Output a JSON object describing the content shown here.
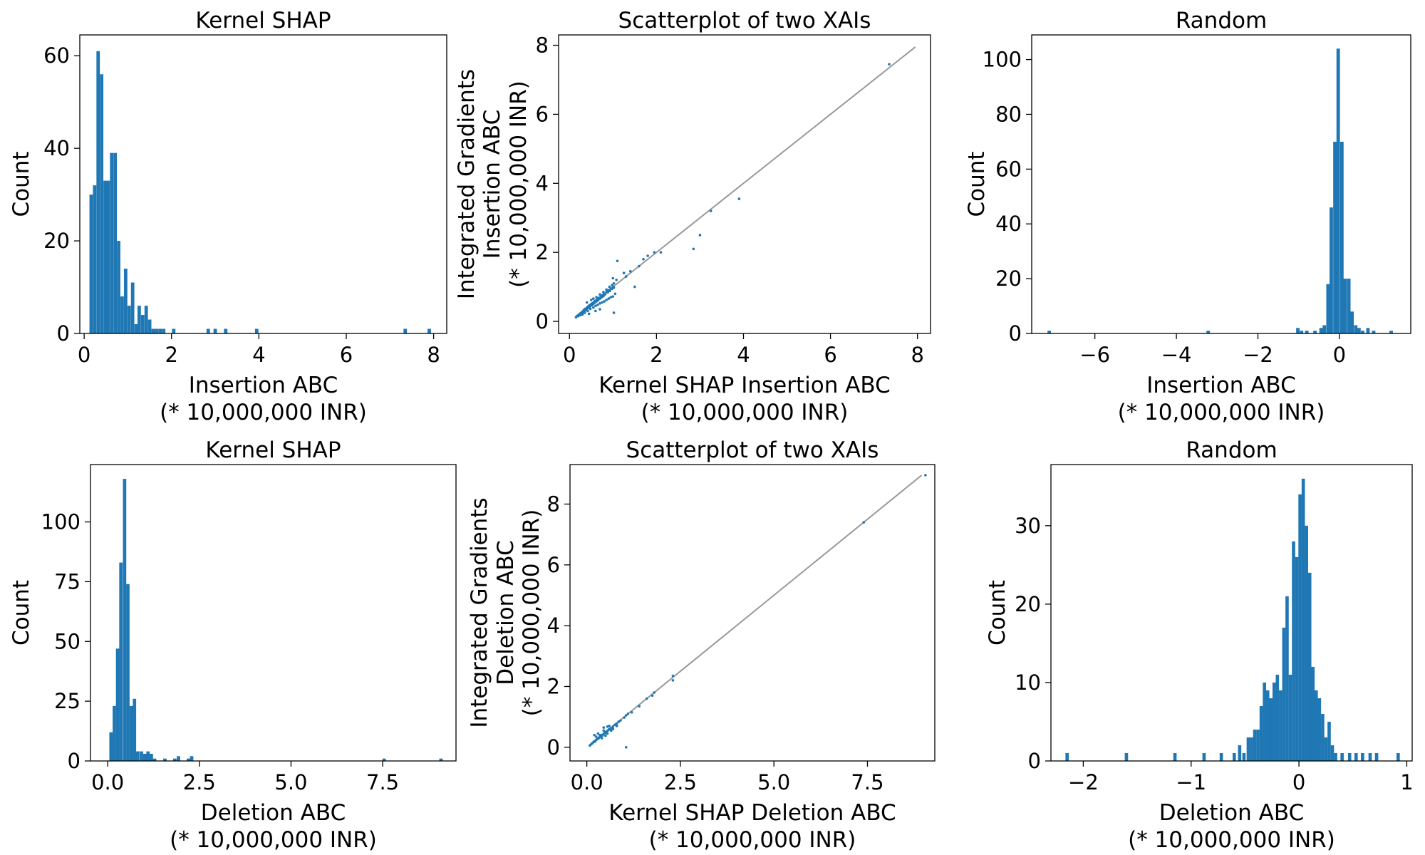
{
  "chart_data": [
    {
      "type": "bar",
      "title": "Kernel SHAP",
      "xlabel": [
        "Insertion ABC",
        "(* 10,000,000 INR)"
      ],
      "ylabel": [
        "Count"
      ],
      "xlim": [
        -0.1,
        8.3
      ],
      "ylim": [
        0,
        64.5
      ],
      "xticks": [
        0,
        2,
        4,
        6,
        8
      ],
      "xtick_labels": [
        "0",
        "2",
        "4",
        "6",
        "8"
      ],
      "yticks": [
        0,
        20,
        40,
        60
      ],
      "ytick_labels": [
        "0",
        "20",
        "40",
        "60"
      ],
      "bin_width": 0.078,
      "bins": [
        [
          0.16,
          30
        ],
        [
          0.24,
          32
        ],
        [
          0.32,
          61
        ],
        [
          0.4,
          56
        ],
        [
          0.48,
          33
        ],
        [
          0.55,
          33
        ],
        [
          0.63,
          39
        ],
        [
          0.71,
          39
        ],
        [
          0.79,
          20
        ],
        [
          0.87,
          8
        ],
        [
          0.95,
          14
        ],
        [
          1.03,
          6
        ],
        [
          1.11,
          11
        ],
        [
          1.19,
          2
        ],
        [
          1.26,
          6
        ],
        [
          1.34,
          4
        ],
        [
          1.42,
          6
        ],
        [
          1.5,
          3
        ],
        [
          1.58,
          1
        ],
        [
          1.66,
          1
        ],
        [
          1.74,
          1
        ],
        [
          1.82,
          1
        ],
        [
          2.05,
          1
        ],
        [
          2.84,
          1
        ],
        [
          3.0,
          1
        ],
        [
          3.24,
          1
        ],
        [
          3.95,
          1
        ],
        [
          7.35,
          1
        ],
        [
          7.9,
          1
        ]
      ]
    },
    {
      "type": "scatter",
      "title": "Scatterplot of two XAIs",
      "xlabel": [
        "Kernel SHAP Insertion ABC",
        "(* 10,000,000 INR)"
      ],
      "ylabel": [
        "Integrated Gradients",
        "Insertion ABC",
        "(* 10,000,000 INR)"
      ],
      "xlim": [
        -0.25,
        8.3
      ],
      "ylim": [
        -0.35,
        8.3
      ],
      "xticks": [
        0,
        2,
        4,
        6,
        8
      ],
      "xtick_labels": [
        "0",
        "2",
        "4",
        "6",
        "8"
      ],
      "yticks": [
        0,
        2,
        4,
        6,
        8
      ],
      "ytick_labels": [
        "0",
        "2",
        "4",
        "6",
        "8"
      ],
      "reference_line": [
        [
          0.15,
          0.15
        ],
        [
          7.95,
          7.95
        ]
      ],
      "points": [
        [
          0.15,
          0.12
        ],
        [
          0.18,
          0.16
        ],
        [
          0.2,
          0.15
        ],
        [
          0.22,
          0.2
        ],
        [
          0.25,
          0.18
        ],
        [
          0.26,
          0.24
        ],
        [
          0.28,
          0.22
        ],
        [
          0.3,
          0.28
        ],
        [
          0.32,
          0.26
        ],
        [
          0.33,
          0.33
        ],
        [
          0.35,
          0.3
        ],
        [
          0.36,
          0.36
        ],
        [
          0.38,
          0.34
        ],
        [
          0.4,
          0.4
        ],
        [
          0.41,
          0.37
        ],
        [
          0.43,
          0.43
        ],
        [
          0.45,
          0.4
        ],
        [
          0.46,
          0.47
        ],
        [
          0.48,
          0.44
        ],
        [
          0.5,
          0.5
        ],
        [
          0.52,
          0.47
        ],
        [
          0.53,
          0.53
        ],
        [
          0.55,
          0.51
        ],
        [
          0.57,
          0.57
        ],
        [
          0.58,
          0.54
        ],
        [
          0.6,
          0.6
        ],
        [
          0.62,
          0.58
        ],
        [
          0.64,
          0.64
        ],
        [
          0.66,
          0.61
        ],
        [
          0.68,
          0.68
        ],
        [
          0.7,
          0.66
        ],
        [
          0.72,
          0.72
        ],
        [
          0.74,
          0.7
        ],
        [
          0.76,
          0.76
        ],
        [
          0.78,
          0.73
        ],
        [
          0.8,
          0.8
        ],
        [
          0.82,
          0.78
        ],
        [
          0.85,
          0.85
        ],
        [
          0.88,
          0.84
        ],
        [
          0.9,
          0.9
        ],
        [
          0.93,
          0.88
        ],
        [
          0.95,
          0.95
        ],
        [
          0.98,
          0.94
        ],
        [
          1.0,
          1.0
        ],
        [
          1.02,
          0.98
        ],
        [
          0.3,
          0.2
        ],
        [
          0.35,
          0.25
        ],
        [
          0.42,
          0.3
        ],
        [
          0.48,
          0.36
        ],
        [
          0.55,
          0.4
        ],
        [
          0.6,
          0.45
        ],
        [
          0.65,
          0.48
        ],
        [
          0.7,
          0.52
        ],
        [
          0.75,
          0.55
        ],
        [
          0.8,
          0.58
        ],
        [
          0.85,
          0.62
        ],
        [
          0.9,
          0.66
        ],
        [
          0.95,
          0.7
        ],
        [
          1.0,
          0.72
        ],
        [
          1.05,
          0.8
        ],
        [
          0.4,
          0.55
        ],
        [
          0.5,
          0.62
        ],
        [
          0.55,
          0.66
        ],
        [
          0.62,
          0.7
        ],
        [
          0.7,
          0.78
        ],
        [
          0.78,
          0.85
        ],
        [
          0.85,
          0.92
        ],
        [
          0.92,
          1.0
        ],
        [
          0.98,
          1.05
        ],
        [
          1.02,
          1.1
        ],
        [
          1.08,
          1.2
        ],
        [
          1.0,
          1.25
        ],
        [
          1.1,
          1.75
        ],
        [
          1.02,
          0.25
        ],
        [
          0.6,
          0.3
        ],
        [
          0.7,
          0.35
        ],
        [
          0.45,
          0.22
        ],
        [
          1.25,
          1.4
        ],
        [
          1.3,
          1.3
        ],
        [
          1.4,
          1.45
        ],
        [
          1.5,
          1.0
        ],
        [
          1.6,
          1.6
        ],
        [
          1.7,
          1.8
        ],
        [
          1.8,
          1.9
        ],
        [
          1.95,
          2.0
        ],
        [
          2.1,
          2.0
        ],
        [
          2.85,
          2.1
        ],
        [
          3.0,
          2.5
        ],
        [
          3.25,
          3.2
        ],
        [
          3.9,
          3.55
        ],
        [
          7.35,
          7.45
        ]
      ]
    },
    {
      "type": "bar",
      "title": "Random",
      "xlabel": [
        "Insertion ABC",
        "(* 10,000,000 INR)"
      ],
      "ylabel": [
        "Count"
      ],
      "xlim": [
        -7.55,
        1.75
      ],
      "ylim": [
        0,
        109
      ],
      "xticks": [
        -6,
        -4,
        -2,
        0
      ],
      "xtick_labels": [
        "−6",
        "−4",
        "−2",
        "0"
      ],
      "yticks": [
        0,
        20,
        40,
        60,
        80,
        100
      ],
      "ytick_labels": [
        "0",
        "20",
        "40",
        "60",
        "80",
        "100"
      ],
      "bin_width": 0.085,
      "bins": [
        [
          -7.12,
          1
        ],
        [
          -3.22,
          1
        ],
        [
          -1.02,
          2
        ],
        [
          -0.93,
          1
        ],
        [
          -0.8,
          1
        ],
        [
          -0.6,
          1
        ],
        [
          -0.45,
          2
        ],
        [
          -0.37,
          3
        ],
        [
          -0.28,
          18
        ],
        [
          -0.2,
          46
        ],
        [
          -0.11,
          70
        ],
        [
          -0.03,
          104
        ],
        [
          0.06,
          70
        ],
        [
          0.14,
          20
        ],
        [
          0.23,
          20
        ],
        [
          0.31,
          8
        ],
        [
          0.4,
          3
        ],
        [
          0.48,
          2
        ],
        [
          0.57,
          1
        ],
        [
          0.7,
          2
        ],
        [
          0.84,
          1
        ],
        [
          1.27,
          1
        ]
      ]
    },
    {
      "type": "bar",
      "title": "Kernel SHAP",
      "xlabel": [
        "Deletion ABC",
        "(* 10,000,000 INR)"
      ],
      "ylabel": [
        "Count"
      ],
      "xlim": [
        -0.47,
        9.5
      ],
      "ylim": [
        0,
        124
      ],
      "xticks": [
        0,
        2.5,
        5,
        7.5
      ],
      "xtick_labels": [
        "0.0",
        "2.5",
        "5.0",
        "7.5"
      ],
      "yticks": [
        0,
        25,
        50,
        75,
        100
      ],
      "ytick_labels": [
        "0",
        "25",
        "50",
        "75",
        "100"
      ],
      "bin_width": 0.092,
      "bins": [
        [
          0.09,
          12
        ],
        [
          0.18,
          23
        ],
        [
          0.27,
          47
        ],
        [
          0.36,
          83
        ],
        [
          0.46,
          118
        ],
        [
          0.55,
          74
        ],
        [
          0.64,
          23
        ],
        [
          0.73,
          26
        ],
        [
          0.82,
          4
        ],
        [
          0.92,
          4
        ],
        [
          1.01,
          3
        ],
        [
          1.1,
          4
        ],
        [
          1.19,
          3
        ],
        [
          1.28,
          1
        ],
        [
          1.56,
          1
        ],
        [
          1.83,
          1
        ],
        [
          1.93,
          2
        ],
        [
          2.2,
          1
        ],
        [
          2.29,
          2
        ],
        [
          7.54,
          1
        ],
        [
          9.09,
          1
        ]
      ]
    },
    {
      "type": "scatter",
      "title": "Scatterplot of two XAIs",
      "xlabel": [
        "Kernel SHAP Deletion ABC",
        "(* 10,000,000 INR)"
      ],
      "ylabel": [
        "Integrated Gradients",
        "Deletion ABC",
        "(* 10,000,000 INR)"
      ],
      "xlim": [
        -0.45,
        9.3
      ],
      "ylim": [
        -0.45,
        9.3
      ],
      "xticks": [
        0,
        2.5,
        5,
        7.5
      ],
      "xtick_labels": [
        "0.0",
        "2.5",
        "5.0",
        "7.5"
      ],
      "yticks": [
        0,
        2,
        4,
        6,
        8
      ],
      "ytick_labels": [
        "0",
        "2",
        "4",
        "6",
        "8"
      ],
      "reference_line": [
        [
          0.08,
          0.08
        ],
        [
          8.95,
          8.95
        ]
      ],
      "points": [
        [
          0.08,
          0.06
        ],
        [
          0.12,
          0.1
        ],
        [
          0.15,
          0.14
        ],
        [
          0.18,
          0.17
        ],
        [
          0.2,
          0.2
        ],
        [
          0.22,
          0.19
        ],
        [
          0.25,
          0.24
        ],
        [
          0.27,
          0.27
        ],
        [
          0.3,
          0.28
        ],
        [
          0.32,
          0.31
        ],
        [
          0.35,
          0.34
        ],
        [
          0.38,
          0.37
        ],
        [
          0.4,
          0.4
        ],
        [
          0.42,
          0.39
        ],
        [
          0.45,
          0.44
        ],
        [
          0.48,
          0.47
        ],
        [
          0.5,
          0.5
        ],
        [
          0.52,
          0.49
        ],
        [
          0.55,
          0.54
        ],
        [
          0.58,
          0.57
        ],
        [
          0.6,
          0.6
        ],
        [
          0.65,
          0.63
        ],
        [
          0.7,
          0.68
        ],
        [
          0.75,
          0.74
        ],
        [
          0.8,
          0.78
        ],
        [
          0.85,
          0.84
        ],
        [
          0.9,
          0.88
        ],
        [
          1.0,
          0.98
        ],
        [
          1.05,
          1.05
        ],
        [
          1.1,
          1.1
        ],
        [
          0.25,
          0.35
        ],
        [
          0.3,
          0.45
        ],
        [
          0.35,
          0.4
        ],
        [
          0.45,
          0.55
        ],
        [
          0.55,
          0.68
        ],
        [
          0.6,
          0.7
        ],
        [
          0.4,
          0.3
        ],
        [
          0.5,
          0.38
        ],
        [
          0.55,
          0.45
        ],
        [
          0.65,
          0.55
        ],
        [
          0.7,
          0.6
        ],
        [
          0.8,
          0.7
        ],
        [
          0.2,
          0.4
        ],
        [
          0.45,
          0.65
        ],
        [
          1.05,
          0.0
        ],
        [
          1.2,
          1.15
        ],
        [
          1.4,
          1.35
        ],
        [
          1.6,
          1.6
        ],
        [
          1.75,
          1.7
        ],
        [
          1.8,
          1.8
        ],
        [
          2.3,
          2.2
        ],
        [
          2.3,
          2.35
        ],
        [
          7.4,
          7.4
        ],
        [
          9.05,
          8.95
        ]
      ]
    },
    {
      "type": "bar",
      "title": "Random",
      "xlabel": [
        "Deletion ABC",
        "(* 10,000,000 INR)"
      ],
      "ylabel": [
        "Count"
      ],
      "xlim": [
        -2.3,
        1.05
      ],
      "ylim": [
        0,
        37.8
      ],
      "xticks": [
        -2,
        -1,
        0,
        1
      ],
      "xtick_labels": [
        "−2",
        "−1",
        "0",
        "1"
      ],
      "yticks": [
        0,
        10,
        20,
        30
      ],
      "ytick_labels": [
        "0",
        "10",
        "20",
        "30"
      ],
      "bin_width": 0.0305,
      "bins": [
        [
          -2.15,
          1
        ],
        [
          -1.6,
          1
        ],
        [
          -1.15,
          1
        ],
        [
          -0.88,
          1
        ],
        [
          -0.72,
          1
        ],
        [
          -0.6,
          1
        ],
        [
          -0.55,
          2
        ],
        [
          -0.51,
          1
        ],
        [
          -0.47,
          3
        ],
        [
          -0.44,
          3
        ],
        [
          -0.41,
          4
        ],
        [
          -0.38,
          4
        ],
        [
          -0.35,
          7
        ],
        [
          -0.32,
          10
        ],
        [
          -0.29,
          9
        ],
        [
          -0.26,
          8
        ],
        [
          -0.23,
          10
        ],
        [
          -0.2,
          11
        ],
        [
          -0.17,
          9
        ],
        [
          -0.14,
          17
        ],
        [
          -0.11,
          21
        ],
        [
          -0.08,
          11
        ],
        [
          -0.05,
          28
        ],
        [
          -0.02,
          26
        ],
        [
          0.01,
          34
        ],
        [
          0.04,
          36
        ],
        [
          0.07,
          30
        ],
        [
          0.1,
          24
        ],
        [
          0.13,
          12
        ],
        [
          0.16,
          9
        ],
        [
          0.19,
          8
        ],
        [
          0.22,
          6
        ],
        [
          0.25,
          3
        ],
        [
          0.28,
          5
        ],
        [
          0.31,
          2
        ],
        [
          0.34,
          1
        ],
        [
          0.4,
          1
        ],
        [
          0.47,
          1
        ],
        [
          0.53,
          1
        ],
        [
          0.59,
          1
        ],
        [
          0.66,
          1
        ],
        [
          0.72,
          1
        ],
        [
          0.92,
          1
        ]
      ]
    }
  ]
}
